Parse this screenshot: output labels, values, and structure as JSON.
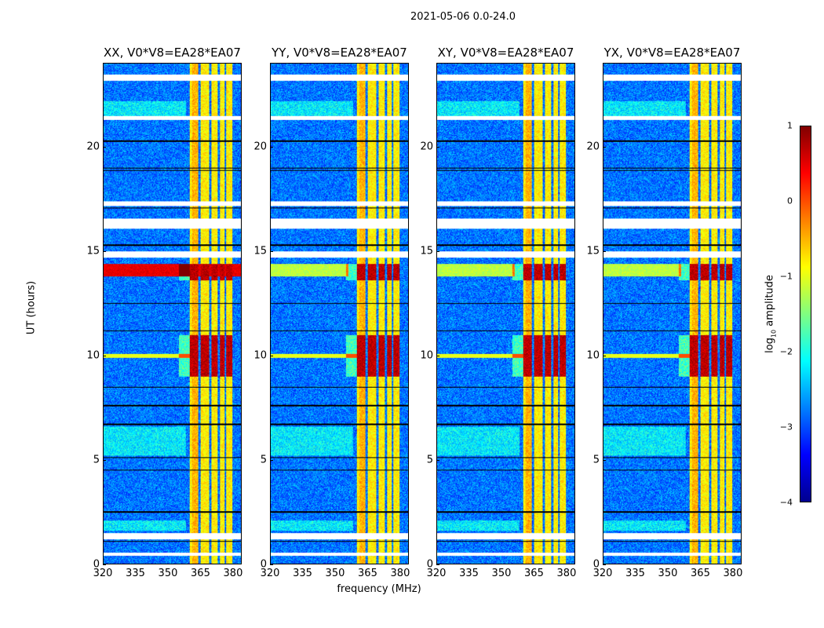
{
  "chart_data": {
    "type": "heatmap",
    "title": "2021-05-06 0.0-24.0",
    "xlabel": "frequency (MHz)",
    "ylabel": "UT (hours)",
    "xlim": [
      320,
      384
    ],
    "ylim": [
      0,
      24
    ],
    "xticks": [
      "320",
      "335",
      "350",
      "365",
      "380"
    ],
    "yticks": [
      "0",
      "5",
      "10",
      "15",
      "20"
    ],
    "panels": [
      {
        "title": "XX, V0*V8=EA28*EA07",
        "strong_row_rfi": true
      },
      {
        "title": "YY, V0*V8=EA28*EA07",
        "strong_row_rfi": false
      },
      {
        "title": "XY, V0*V8=EA28*EA07",
        "strong_row_rfi": false
      },
      {
        "title": "YX, V0*V8=EA28*EA07",
        "strong_row_rfi": false
      }
    ],
    "colorbar": {
      "label": "log10 amplitude",
      "label_main": "log",
      "label_sub": "10",
      "label_rest": " amplitude",
      "range": [
        -4,
        1
      ],
      "ticks": [
        "1",
        "0",
        "−1",
        "−2",
        "−3",
        "−4"
      ],
      "colormap": "jet"
    },
    "bright_band_MHz": [
      360,
      380
    ],
    "band_gap_channels_MHz": [
      364.5,
      369.5,
      373.5,
      376.5
    ],
    "flagged_hours": [
      [
        23.2,
        23.5
      ],
      [
        21.3,
        21.5
      ],
      [
        17.2,
        17.4
      ],
      [
        16.1,
        16.6
      ],
      [
        14.7,
        15.0
      ],
      [
        1.2,
        1.5
      ],
      [
        0.4,
        0.55
      ]
    ],
    "black_line_hours": [
      18.9,
      19.0,
      17.1,
      12.5,
      7.6,
      6.7,
      5.1,
      4.5,
      2.5,
      1.1,
      20.3,
      11.2,
      8.5,
      15.3
    ],
    "high_amplitude_hours": [
      [
        9.0,
        11.0
      ],
      [
        13.6,
        14.4
      ]
    ],
    "broadband_rfi_hours": [
      13.8,
      14.4
    ],
    "levels_log10": {
      "background": -2.8,
      "band": -0.8,
      "high": 0.7
    }
  }
}
